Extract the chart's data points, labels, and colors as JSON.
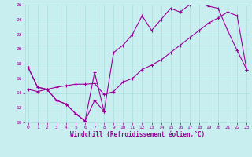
{
  "xlabel": "Windchill (Refroidissement éolien,°C)",
  "background_color": "#c8eef0",
  "grid_color": "#aadddd",
  "line_color": "#990099",
  "xmin": 0,
  "xmax": 23,
  "ymin": 10,
  "ymax": 26,
  "x_ticks": [
    0,
    1,
    2,
    3,
    4,
    5,
    6,
    7,
    8,
    9,
    10,
    11,
    12,
    13,
    14,
    15,
    16,
    17,
    18,
    19,
    20,
    21,
    22,
    23
  ],
  "y_ticks": [
    10,
    12,
    14,
    16,
    18,
    20,
    22,
    24,
    26
  ],
  "series1_x": [
    0,
    1,
    2,
    3,
    4,
    5,
    6,
    7,
    8,
    9,
    10,
    11,
    12,
    13,
    14,
    15,
    16,
    17,
    18,
    19,
    20,
    21,
    22,
    23
  ],
  "series1_y": [
    17.5,
    14.8,
    14.5,
    13.0,
    12.5,
    11.2,
    10.2,
    16.8,
    11.5,
    null,
    null,
    null,
    null,
    null,
    null,
    null,
    null,
    null,
    null,
    null,
    null,
    null,
    null,
    null
  ],
  "series2_x": [
    0,
    1,
    2,
    3,
    4,
    5,
    6,
    7,
    8,
    9,
    10,
    11,
    12,
    13,
    14,
    15,
    16,
    17,
    18,
    19,
    20,
    21,
    22,
    23
  ],
  "series2_y": [
    17.5,
    14.8,
    14.5,
    13.0,
    12.5,
    11.2,
    10.2,
    13.0,
    11.5,
    19.5,
    20.5,
    22.0,
    24.5,
    22.5,
    24.0,
    25.5,
    25.0,
    26.0,
    26.2,
    25.8,
    25.5,
    22.5,
    19.8,
    17.2
  ],
  "series3_x": [
    0,
    1,
    2,
    3,
    4,
    5,
    6,
    7,
    8,
    9,
    10,
    11,
    12,
    13,
    14,
    15,
    16,
    17,
    18,
    19,
    20,
    21,
    22,
    23
  ],
  "series3_y": [
    14.5,
    14.2,
    14.5,
    14.8,
    15.0,
    15.2,
    15.2,
    15.3,
    13.8,
    14.2,
    15.5,
    16.0,
    17.2,
    17.8,
    18.5,
    19.5,
    20.5,
    21.5,
    22.5,
    23.5,
    24.2,
    25.0,
    24.5,
    17.2
  ]
}
